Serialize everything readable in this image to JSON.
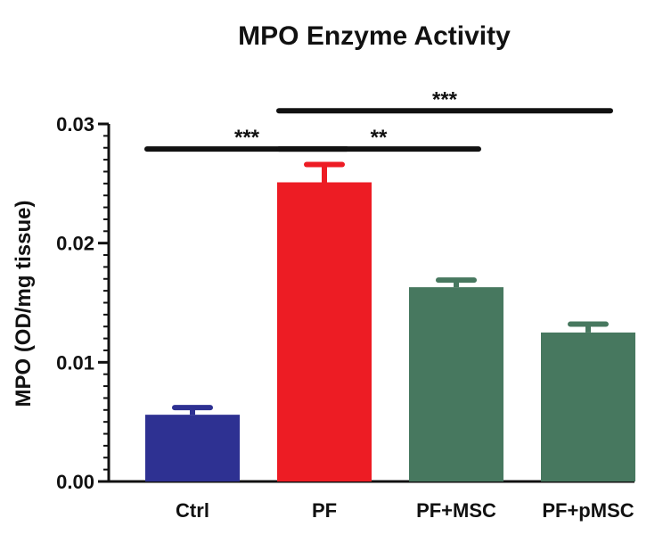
{
  "chart_data": {
    "type": "bar",
    "title": "MPO Enzyme Activity",
    "xlabel": "",
    "ylabel": "MPO (OD/mg tissue)",
    "ylim": [
      0,
      0.03
    ],
    "yticks": [
      0,
      0.01,
      0.02,
      0.03
    ],
    "ytick_labels": [
      "0.00",
      "0.01",
      "0.02",
      "0.03"
    ],
    "minor_tick_step": 0.001,
    "categories": [
      "Ctrl",
      "PF",
      "PF+MSC",
      "PF+pMSC"
    ],
    "values": [
      0.0056,
      0.0251,
      0.0163,
      0.0125
    ],
    "errors": [
      0.0006,
      0.0015,
      0.0006,
      0.0007
    ],
    "colors": [
      "#2e3192",
      "#ed1c24",
      "#47785f",
      "#47785f"
    ],
    "significance": [
      {
        "from": 0,
        "to": 1,
        "label": "***",
        "level": 0.0279
      },
      {
        "from": 1,
        "to": 2,
        "label": "**",
        "level": 0.0279
      },
      {
        "from": 1,
        "to": 3,
        "label": "***",
        "level": 0.0311
      }
    ]
  }
}
